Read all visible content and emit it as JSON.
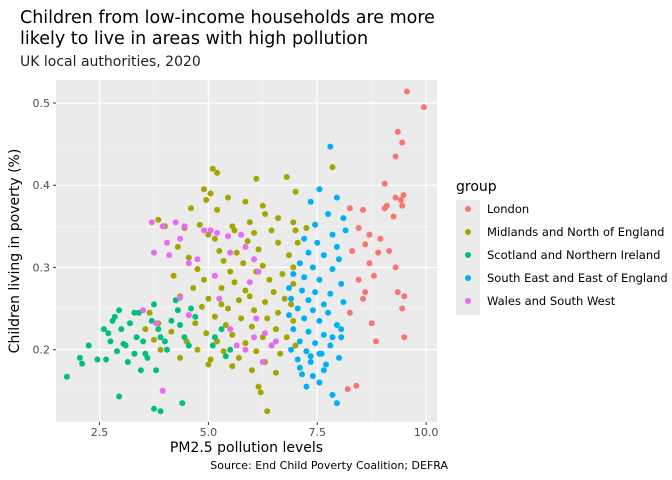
{
  "chart_data": {
    "type": "scatter",
    "title": "Children from low-income households are more likely to live in areas with high pollution",
    "title_lines": [
      "Children from low-income households are more",
      "likely to live in areas with high pollution"
    ],
    "subtitle": "UK local authorities, 2020",
    "xlabel": "PM2.5 pollution levels",
    "ylabel": "Children living in poverty (%)",
    "caption": "Source: End Child Poverty Coalition; DEFRA",
    "xlim": [
      1.5,
      10.25
    ],
    "ylim": [
      0.112,
      0.528
    ],
    "x_ticks": [
      2.5,
      5.0,
      7.5,
      10.0
    ],
    "x_tick_labels": [
      "2.5",
      "5.0",
      "7.5",
      "10.0"
    ],
    "y_ticks": [
      0.2,
      0.3,
      0.4,
      0.5
    ],
    "y_tick_labels": [
      "0.2",
      "0.3",
      "0.4",
      "0.5"
    ],
    "grid": true,
    "legend_title": "group",
    "legend_position": "right",
    "series": [
      {
        "name": "London",
        "color": "#F8766D",
        "points": [
          [
            9.56,
            0.514
          ],
          [
            9.95,
            0.495
          ],
          [
            9.35,
            0.465
          ],
          [
            9.45,
            0.452
          ],
          [
            9.3,
            0.435
          ],
          [
            9.05,
            0.402
          ],
          [
            9.48,
            0.388
          ],
          [
            9.42,
            0.382
          ],
          [
            9.3,
            0.385
          ],
          [
            9.1,
            0.375
          ],
          [
            9.25,
            0.362
          ],
          [
            9.05,
            0.372
          ],
          [
            9.45,
            0.375
          ],
          [
            8.25,
            0.372
          ],
          [
            8.55,
            0.37
          ],
          [
            8.45,
            0.348
          ],
          [
            8.7,
            0.34
          ],
          [
            8.95,
            0.335
          ],
          [
            8.6,
            0.328
          ],
          [
            8.3,
            0.32
          ],
          [
            8.9,
            0.318
          ],
          [
            9.15,
            0.32
          ],
          [
            9.3,
            0.3
          ],
          [
            8.7,
            0.305
          ],
          [
            8.8,
            0.29
          ],
          [
            8.45,
            0.285
          ],
          [
            9.35,
            0.27
          ],
          [
            9.5,
            0.265
          ],
          [
            8.6,
            0.27
          ],
          [
            8.25,
            0.245
          ],
          [
            8.55,
            0.262
          ],
          [
            9.45,
            0.25
          ],
          [
            8.75,
            0.232
          ],
          [
            9.5,
            0.215
          ],
          [
            8.85,
            0.21
          ],
          [
            8.4,
            0.156
          ],
          [
            8.2,
            0.152
          ]
        ]
      },
      {
        "name": "Midlands and North of England",
        "color": "#A3A500",
        "points": [
          [
            5.1,
            0.42
          ],
          [
            5.2,
            0.415
          ],
          [
            6.1,
            0.408
          ],
          [
            6.8,
            0.41
          ],
          [
            7.85,
            0.422
          ],
          [
            4.9,
            0.395
          ],
          [
            5.05,
            0.39
          ],
          [
            4.95,
            0.382
          ],
          [
            5.45,
            0.385
          ],
          [
            5.85,
            0.38
          ],
          [
            6.25,
            0.375
          ],
          [
            7.0,
            0.392
          ],
          [
            4.6,
            0.372
          ],
          [
            5.2,
            0.37
          ],
          [
            6.3,
            0.365
          ],
          [
            6.6,
            0.36
          ],
          [
            6.95,
            0.355
          ],
          [
            5.95,
            0.355
          ],
          [
            4.8,
            0.352
          ],
          [
            5.55,
            0.35
          ],
          [
            4.0,
            0.35
          ],
          [
            3.85,
            0.358
          ],
          [
            4.45,
            0.348
          ],
          [
            5.0,
            0.34
          ],
          [
            6.05,
            0.342
          ],
          [
            6.45,
            0.345
          ],
          [
            7.0,
            0.345
          ],
          [
            7.25,
            0.348
          ],
          [
            5.15,
            0.335
          ],
          [
            5.9,
            0.332
          ],
          [
            6.6,
            0.33
          ],
          [
            7.05,
            0.33
          ],
          [
            4.3,
            0.325
          ],
          [
            5.25,
            0.32
          ],
          [
            5.65,
            0.318
          ],
          [
            6.15,
            0.322
          ],
          [
            6.85,
            0.315
          ],
          [
            4.55,
            0.312
          ],
          [
            5.35,
            0.308
          ],
          [
            5.8,
            0.305
          ],
          [
            6.25,
            0.302
          ],
          [
            6.95,
            0.3
          ],
          [
            4.75,
            0.298
          ],
          [
            5.5,
            0.295
          ],
          [
            6.1,
            0.295
          ],
          [
            6.7,
            0.292
          ],
          [
            4.2,
            0.29
          ],
          [
            4.9,
            0.285
          ],
          [
            5.6,
            0.282
          ],
          [
            6.4,
            0.285
          ],
          [
            6.95,
            0.28
          ],
          [
            4.65,
            0.275
          ],
          [
            5.3,
            0.275
          ],
          [
            5.85,
            0.272
          ],
          [
            6.5,
            0.27
          ],
          [
            4.35,
            0.265
          ],
          [
            5.0,
            0.262
          ],
          [
            5.7,
            0.26
          ],
          [
            6.3,
            0.258
          ],
          [
            6.9,
            0.255
          ],
          [
            4.85,
            0.252
          ],
          [
            5.45,
            0.25
          ],
          [
            6.05,
            0.248
          ],
          [
            6.6,
            0.245
          ],
          [
            4.55,
            0.242
          ],
          [
            5.15,
            0.24
          ],
          [
            5.75,
            0.238
          ],
          [
            6.35,
            0.238
          ],
          [
            6.95,
            0.235
          ],
          [
            3.85,
            0.232
          ],
          [
            4.7,
            0.232
          ],
          [
            5.4,
            0.23
          ],
          [
            6.0,
            0.228
          ],
          [
            6.55,
            0.225
          ],
          [
            4.15,
            0.222
          ],
          [
            4.95,
            0.22
          ],
          [
            5.55,
            0.218
          ],
          [
            6.25,
            0.215
          ],
          [
            6.8,
            0.215
          ],
          [
            3.75,
            0.212
          ],
          [
            4.5,
            0.21
          ],
          [
            5.2,
            0.21
          ],
          [
            5.85,
            0.208
          ],
          [
            6.45,
            0.205
          ],
          [
            7.0,
            0.205
          ],
          [
            3.9,
            0.2
          ],
          [
            4.75,
            0.2
          ],
          [
            5.35,
            0.198
          ],
          [
            6.1,
            0.198
          ],
          [
            6.65,
            0.195
          ],
          [
            4.35,
            0.19
          ],
          [
            5.05,
            0.188
          ],
          [
            5.7,
            0.19
          ],
          [
            6.3,
            0.185
          ],
          [
            5.0,
            0.182
          ],
          [
            5.55,
            0.18
          ],
          [
            6.0,
            0.175
          ],
          [
            6.55,
            0.172
          ],
          [
            6.15,
            0.155
          ],
          [
            6.2,
            0.148
          ],
          [
            6.35,
            0.125
          ],
          [
            3.55,
            0.225
          ],
          [
            3.65,
            0.245
          ],
          [
            5.3,
            0.255
          ],
          [
            5.95,
            0.265
          ],
          [
            6.75,
            0.262
          ],
          [
            5.6,
            0.345
          ]
        ]
      },
      {
        "name": "Scotland and Northern Ireland",
        "color": "#00BF7D",
        "points": [
          [
            1.75,
            0.167
          ],
          [
            2.05,
            0.19
          ],
          [
            2.1,
            0.183
          ],
          [
            2.25,
            0.205
          ],
          [
            2.45,
            0.188
          ],
          [
            2.6,
            0.225
          ],
          [
            2.65,
            0.188
          ],
          [
            2.7,
            0.22
          ],
          [
            2.75,
            0.21
          ],
          [
            2.8,
            0.235
          ],
          [
            2.85,
            0.24
          ],
          [
            2.95,
            0.248
          ],
          [
            3.0,
            0.225
          ],
          [
            3.05,
            0.207
          ],
          [
            3.1,
            0.205
          ],
          [
            3.2,
            0.232
          ],
          [
            3.3,
            0.245
          ],
          [
            3.15,
            0.185
          ],
          [
            3.35,
            0.215
          ],
          [
            3.4,
            0.245
          ],
          [
            3.5,
            0.21
          ],
          [
            3.55,
            0.195
          ],
          [
            3.6,
            0.19
          ],
          [
            3.7,
            0.235
          ],
          [
            3.75,
            0.255
          ],
          [
            3.85,
            0.225
          ],
          [
            3.9,
            0.215
          ],
          [
            4.0,
            0.21
          ],
          [
            4.05,
            0.2
          ],
          [
            4.15,
            0.235
          ],
          [
            4.25,
            0.26
          ],
          [
            4.3,
            0.248
          ],
          [
            4.35,
            0.23
          ],
          [
            4.45,
            0.215
          ],
          [
            4.55,
            0.205
          ],
          [
            3.45,
            0.175
          ],
          [
            3.8,
            0.175
          ],
          [
            2.95,
            0.143
          ],
          [
            3.75,
            0.128
          ],
          [
            3.9,
            0.125
          ],
          [
            4.4,
            0.135
          ],
          [
            4.6,
            0.25
          ],
          [
            4.7,
            0.24
          ],
          [
            5.1,
            0.205
          ],
          [
            5.15,
            0.215
          ],
          [
            5.3,
            0.225
          ],
          [
            5.4,
            0.192
          ],
          [
            5.5,
            0.2
          ],
          [
            3.3,
            0.195
          ],
          [
            2.9,
            0.198
          ]
        ]
      },
      {
        "name": "South East and East of England",
        "color": "#00B0F6",
        "points": [
          [
            7.8,
            0.447
          ],
          [
            7.55,
            0.395
          ],
          [
            7.35,
            0.38
          ],
          [
            7.95,
            0.385
          ],
          [
            7.75,
            0.365
          ],
          [
            8.1,
            0.36
          ],
          [
            7.45,
            0.352
          ],
          [
            7.85,
            0.34
          ],
          [
            8.15,
            0.345
          ],
          [
            7.2,
            0.335
          ],
          [
            7.5,
            0.33
          ],
          [
            7.95,
            0.325
          ],
          [
            7.3,
            0.318
          ],
          [
            7.65,
            0.315
          ],
          [
            8.0,
            0.31
          ],
          [
            7.1,
            0.305
          ],
          [
            7.4,
            0.3
          ],
          [
            7.85,
            0.298
          ],
          [
            6.95,
            0.292
          ],
          [
            7.2,
            0.288
          ],
          [
            7.55,
            0.285
          ],
          [
            8.05,
            0.28
          ],
          [
            6.85,
            0.275
          ],
          [
            7.15,
            0.272
          ],
          [
            7.45,
            0.27
          ],
          [
            7.8,
            0.268
          ],
          [
            6.9,
            0.262
          ],
          [
            7.3,
            0.26
          ],
          [
            7.65,
            0.255
          ],
          [
            8.1,
            0.258
          ],
          [
            7.05,
            0.25
          ],
          [
            7.4,
            0.248
          ],
          [
            7.75,
            0.245
          ],
          [
            6.85,
            0.242
          ],
          [
            7.2,
            0.238
          ],
          [
            7.55,
            0.235
          ],
          [
            7.95,
            0.23
          ],
          [
            6.95,
            0.225
          ],
          [
            7.3,
            0.222
          ],
          [
            7.65,
            0.218
          ],
          [
            8.05,
            0.215
          ],
          [
            7.1,
            0.21
          ],
          [
            7.45,
            0.208
          ],
          [
            7.8,
            0.205
          ],
          [
            6.9,
            0.2
          ],
          [
            7.25,
            0.198
          ],
          [
            7.6,
            0.195
          ],
          [
            8.0,
            0.19
          ],
          [
            7.05,
            0.188
          ],
          [
            7.35,
            0.185
          ],
          [
            7.7,
            0.182
          ],
          [
            7.15,
            0.17
          ],
          [
            7.4,
            0.168
          ],
          [
            7.55,
            0.16
          ],
          [
            7.25,
            0.155
          ],
          [
            7.85,
            0.145
          ],
          [
            7.95,
            0.135
          ],
          [
            7.1,
            0.178
          ],
          [
            7.35,
            0.192
          ],
          [
            7.55,
            0.195
          ],
          [
            7.85,
            0.215
          ],
          [
            8.05,
            0.225
          ],
          [
            7.65,
            0.175
          ]
        ]
      },
      {
        "name": "Wales and South West",
        "color": "#E76BF3",
        "points": [
          [
            3.7,
            0.355
          ],
          [
            3.95,
            0.35
          ],
          [
            4.25,
            0.355
          ],
          [
            4.45,
            0.35
          ],
          [
            4.35,
            0.335
          ],
          [
            4.1,
            0.315
          ],
          [
            3.75,
            0.318
          ],
          [
            4.55,
            0.305
          ],
          [
            4.75,
            0.31
          ],
          [
            4.9,
            0.345
          ],
          [
            5.05,
            0.345
          ],
          [
            5.2,
            0.342
          ],
          [
            5.45,
            0.338
          ],
          [
            5.75,
            0.34
          ],
          [
            5.85,
            0.325
          ],
          [
            5.5,
            0.318
          ],
          [
            6.05,
            0.31
          ],
          [
            6.15,
            0.295
          ],
          [
            5.95,
            0.282
          ],
          [
            5.25,
            0.262
          ],
          [
            4.35,
            0.263
          ],
          [
            4.55,
            0.242
          ],
          [
            5.5,
            0.225
          ],
          [
            5.65,
            0.205
          ],
          [
            5.85,
            0.2
          ],
          [
            6.05,
            0.215
          ],
          [
            6.1,
            0.238
          ],
          [
            6.3,
            0.22
          ],
          [
            6.45,
            0.205
          ],
          [
            6.55,
            0.21
          ],
          [
            6.25,
            0.185
          ],
          [
            3.5,
            0.248
          ],
          [
            3.95,
            0.15
          ],
          [
            3.8,
            0.232
          ],
          [
            4.05,
            0.33
          ],
          [
            5.15,
            0.29
          ]
        ]
      }
    ]
  }
}
